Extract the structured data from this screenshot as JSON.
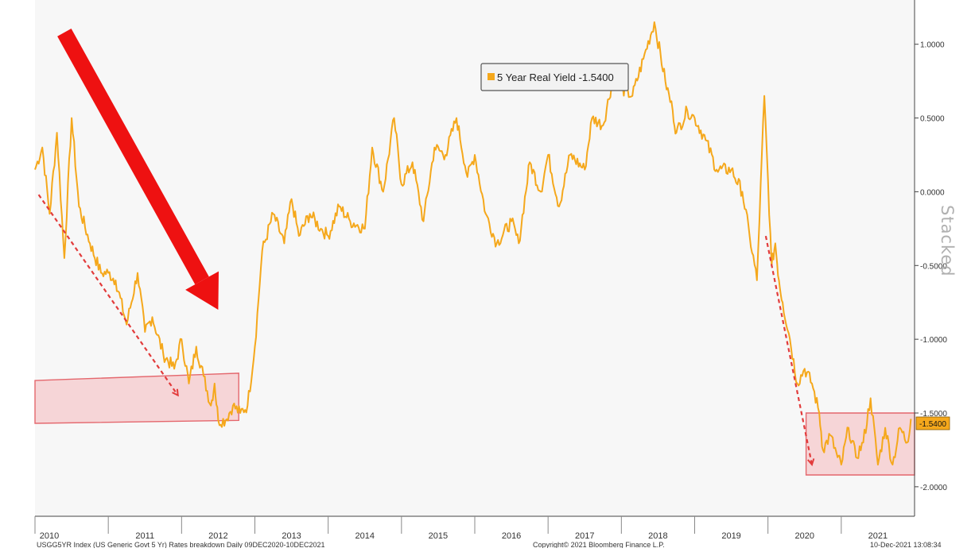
{
  "chart_data": {
    "type": "line",
    "legend_label": "5 Year Real Yield -1.5400",
    "last_value_label": "-1.5400",
    "y_ticks": [
      "1.0000",
      "0.5000",
      "0.0000",
      "-0.5000",
      "-1.0000",
      "-1.5000",
      "-2.0000"
    ],
    "y_tick_values": [
      1.0,
      0.5,
      0.0,
      -0.5,
      -1.0,
      -1.5,
      -2.0
    ],
    "ylim": [
      -2.2,
      1.3
    ],
    "x_ticks": [
      "2010",
      "2011",
      "2012",
      "2013",
      "2014",
      "2015",
      "2016",
      "2017",
      "2018",
      "2019",
      "2020",
      "2021"
    ],
    "xlim": [
      2010.0,
      2022.0
    ],
    "grid": false,
    "legend_position": "top-center",
    "colors": {
      "series": "#f5a81c",
      "box_fill": "#f6c9cc",
      "box_stroke": "#e4676d",
      "arrow": "#ee1111",
      "trend": "#e23b3b",
      "panel": "#f7f7f7"
    },
    "series": [
      {
        "name": "5 Year Real Yield",
        "x": [
          2010.0,
          2010.1,
          2010.2,
          2010.3,
          2010.4,
          2010.5,
          2010.6,
          2010.75,
          2010.9,
          2011.0,
          2011.1,
          2011.25,
          2011.4,
          2011.5,
          2011.6,
          2011.75,
          2011.9,
          2012.0,
          2012.1,
          2012.2,
          2012.3,
          2012.4,
          2012.45,
          2012.5,
          2012.6,
          2012.7,
          2012.8,
          2012.9,
          2013.0,
          2013.1,
          2013.25,
          2013.4,
          2013.5,
          2013.6,
          2013.75,
          2013.9,
          2014.0,
          2014.15,
          2014.3,
          2014.5,
          2014.6,
          2014.75,
          2014.9,
          2015.0,
          2015.15,
          2015.3,
          2015.45,
          2015.6,
          2015.75,
          2015.9,
          2016.0,
          2016.15,
          2016.3,
          2016.5,
          2016.6,
          2016.75,
          2016.9,
          2017.0,
          2017.15,
          2017.3,
          2017.5,
          2017.6,
          2017.75,
          2017.9,
          2018.0,
          2018.15,
          2018.3,
          2018.45,
          2018.6,
          2018.7,
          2018.75,
          2018.9,
          2019.0,
          2019.15,
          2019.3,
          2019.5,
          2019.65,
          2019.75,
          2019.85,
          2019.95,
          2020.05,
          2020.1,
          2020.15,
          2020.2,
          2020.3,
          2020.4,
          2020.5,
          2020.6,
          2020.7,
          2020.75,
          2020.85,
          2020.95,
          2021.0,
          2021.1,
          2021.2,
          2021.3,
          2021.4,
          2021.5,
          2021.6,
          2021.7,
          2021.8,
          2021.9,
          2021.95
        ],
        "values": [
          0.15,
          0.3,
          -0.15,
          0.4,
          -0.45,
          0.5,
          -0.1,
          -0.35,
          -0.55,
          -0.55,
          -0.6,
          -0.9,
          -0.55,
          -0.95,
          -0.85,
          -1.1,
          -1.2,
          -1.0,
          -1.3,
          -1.05,
          -1.25,
          -1.45,
          -1.3,
          -1.55,
          -1.55,
          -1.45,
          -1.5,
          -1.45,
          -1.05,
          -0.4,
          -0.15,
          -0.35,
          -0.05,
          -0.3,
          -0.15,
          -0.25,
          -0.3,
          -0.1,
          -0.2,
          -0.25,
          0.3,
          0.0,
          0.5,
          0.05,
          0.2,
          -0.2,
          0.3,
          0.25,
          0.5,
          0.1,
          0.25,
          -0.15,
          -0.35,
          -0.2,
          -0.35,
          0.2,
          0.0,
          0.25,
          -0.1,
          0.25,
          0.15,
          0.5,
          0.45,
          0.8,
          0.7,
          0.65,
          0.9,
          1.15,
          0.75,
          0.55,
          0.4,
          0.55,
          0.5,
          0.35,
          0.15,
          0.15,
          0.0,
          -0.3,
          -0.6,
          0.65,
          -0.5,
          -0.35,
          -0.6,
          -0.75,
          -1.0,
          -1.3,
          -1.2,
          -1.3,
          -1.5,
          -1.75,
          -1.65,
          -1.8,
          -1.85,
          -1.6,
          -1.8,
          -1.7,
          -1.4,
          -1.85,
          -1.6,
          -1.85,
          -1.6,
          -1.7,
          -1.54
        ]
      }
    ],
    "annotations": {
      "boxes": [
        {
          "x0": 2010.0,
          "x1": 2012.78,
          "y0_left": -1.28,
          "y1_left": -1.57,
          "y0_right": -1.23,
          "y1_right": -1.55
        },
        {
          "x0": 2020.52,
          "x1": 2022.0,
          "y0_left": -1.5,
          "y1_left": -1.92,
          "y0_right": -1.5,
          "y1_right": -1.92
        }
      ],
      "trend_lines": [
        {
          "x0": 2010.05,
          "y0": -0.02,
          "x1": 2011.95,
          "y1": -1.38
        },
        {
          "x0": 2019.97,
          "y0": -0.3,
          "x1": 2020.6,
          "y1": -1.85
        }
      ],
      "arrow": {
        "x0": 2010.4,
        "y0": 1.08,
        "x1": 2012.5,
        "y1": -0.8
      }
    }
  },
  "footer": {
    "left": "USGG5YR Index (US Generic Govt 5 Yr) Rates breakdown  Daily 09DEC2020-10DEC2021",
    "center": "Copyright© 2021 Bloomberg Finance L.P.",
    "right": "10-Dec-2021 13:08:34"
  },
  "watermark": "Stacked"
}
